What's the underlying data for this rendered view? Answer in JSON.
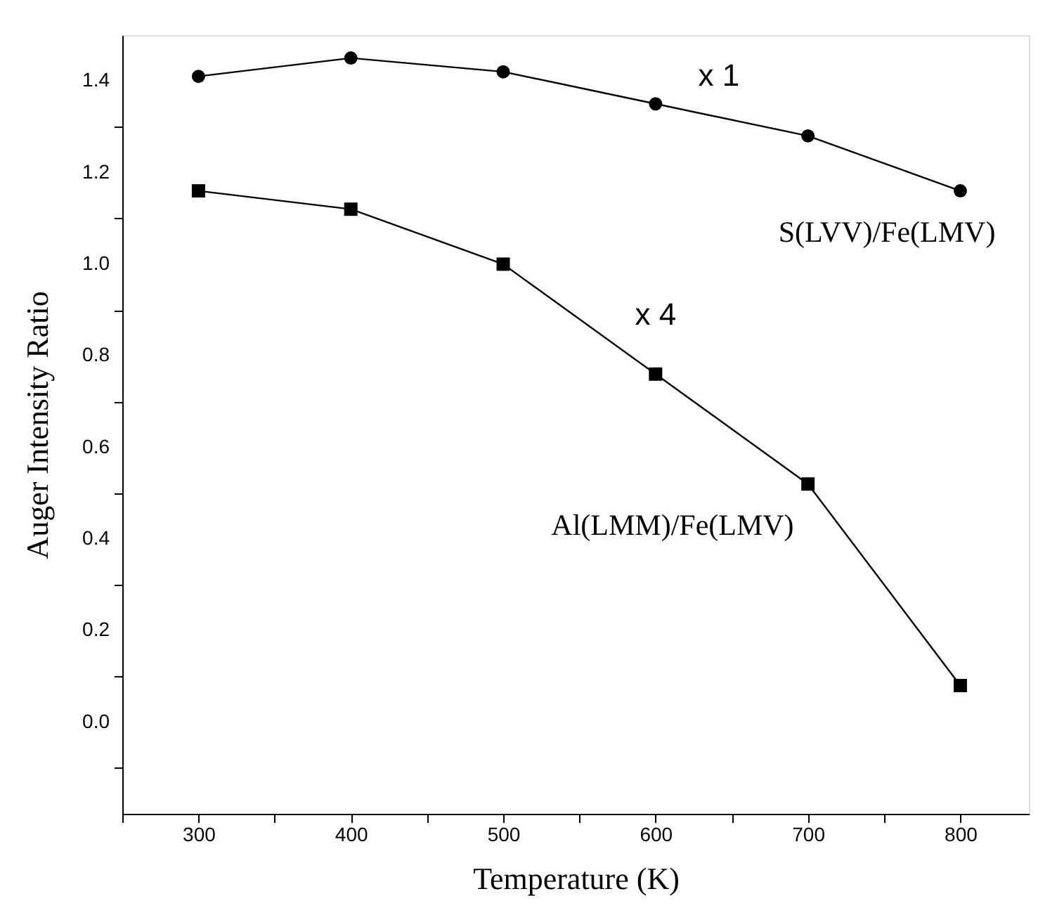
{
  "chart_data": {
    "type": "line",
    "xlabel": "Temperature (K)",
    "ylabel": "Auger Intensity Ratio",
    "x": [
      300,
      400,
      500,
      600,
      700,
      800
    ],
    "series": [
      {
        "name": "S(LVV)/Fe(LMV)",
        "color": "#000000",
        "marker": "circle",
        "values": [
          1.41,
          1.45,
          1.42,
          1.35,
          1.28,
          1.16
        ]
      },
      {
        "name": "Al(LMM)/Fe(LMV)",
        "color": "#000000",
        "marker": "square",
        "values": [
          1.16,
          1.12,
          1.0,
          0.76,
          0.52,
          0.08
        ]
      }
    ],
    "annotations": [
      "x 1",
      "x 4"
    ],
    "xlim": [
      250,
      845
    ],
    "ylim": [
      -0.2,
      1.5
    ],
    "xticks": [
      {
        "value": 250,
        "label": null
      },
      300,
      {
        "value": 350,
        "label": null
      },
      400,
      {
        "value": 450,
        "label": null
      },
      500,
      {
        "value": 550,
        "label": null
      },
      600,
      {
        "value": 650,
        "label": null
      },
      700,
      {
        "value": 750,
        "label": null
      },
      800
    ],
    "yticks": [
      {
        "value": -0.1,
        "label": null
      },
      {
        "value": 0,
        "label": "0.0"
      },
      {
        "value": 0.1,
        "label": null
      },
      {
        "value": 0.2,
        "label": "0.2"
      },
      {
        "value": 0.3,
        "label": null
      },
      {
        "value": 0.4,
        "label": "0.4"
      },
      {
        "value": 0.5,
        "label": null
      },
      {
        "value": 0.6,
        "label": "0.6"
      },
      {
        "value": 0.7,
        "label": null
      },
      {
        "value": 0.8,
        "label": "0.8"
      },
      {
        "value": 0.9,
        "label": null
      },
      {
        "value": 1,
        "label": "1.0"
      },
      {
        "value": 1.1,
        "label": null
      },
      {
        "value": 1.2,
        "label": "1.2"
      },
      {
        "value": 1.3,
        "label": null
      },
      {
        "value": 1.4,
        "label": "1.4"
      }
    ],
    "grid": false,
    "line_style": "solid"
  }
}
